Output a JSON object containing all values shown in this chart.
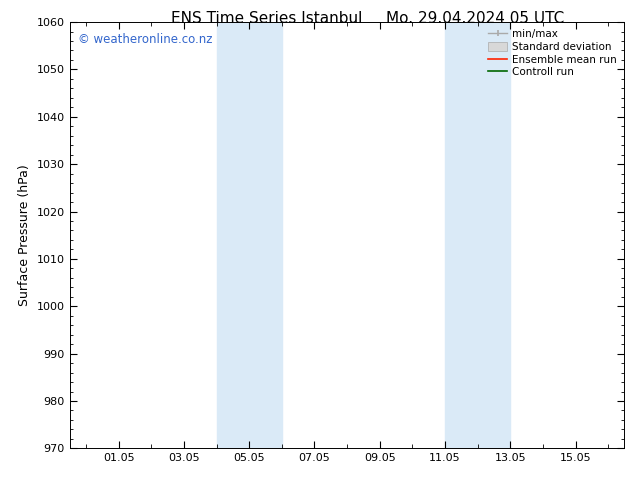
{
  "title_left": "ENS Time Series Istanbul",
  "title_right": "Mo. 29.04.2024 05 UTC",
  "ylabel": "Surface Pressure (hPa)",
  "ylim": [
    970,
    1060
  ],
  "yticks": [
    970,
    980,
    990,
    1000,
    1010,
    1020,
    1030,
    1040,
    1050,
    1060
  ],
  "xlim": [
    29.0,
    15.5
  ],
  "xtick_labels": [
    "01.05",
    "03.05",
    "05.05",
    "07.05",
    "09.05",
    "11.05",
    "13.05",
    "15.05"
  ],
  "xtick_positions": [
    1,
    3,
    5,
    7,
    9,
    11,
    13,
    15
  ],
  "shaded_regions": [
    {
      "xmin": 4.0,
      "xmax": 6.0
    },
    {
      "xmin": 11.0,
      "xmax": 13.0
    }
  ],
  "shaded_color": "#daeaf7",
  "background_color": "#ffffff",
  "watermark_text": "© weatheronline.co.nz",
  "watermark_color": "#3366cc",
  "legend_items": [
    {
      "label": "min/max",
      "color": "#aaaaaa",
      "style": "minmax"
    },
    {
      "label": "Standard deviation",
      "color": "#cccccc",
      "style": "filled"
    },
    {
      "label": "Ensemble mean run",
      "color": "#ff0000",
      "style": "line"
    },
    {
      "label": "Controll run",
      "color": "#008000",
      "style": "line"
    }
  ],
  "title_fontsize": 11,
  "axis_label_fontsize": 9,
  "tick_fontsize": 8,
  "legend_fontsize": 7.5,
  "watermark_fontsize": 8.5
}
